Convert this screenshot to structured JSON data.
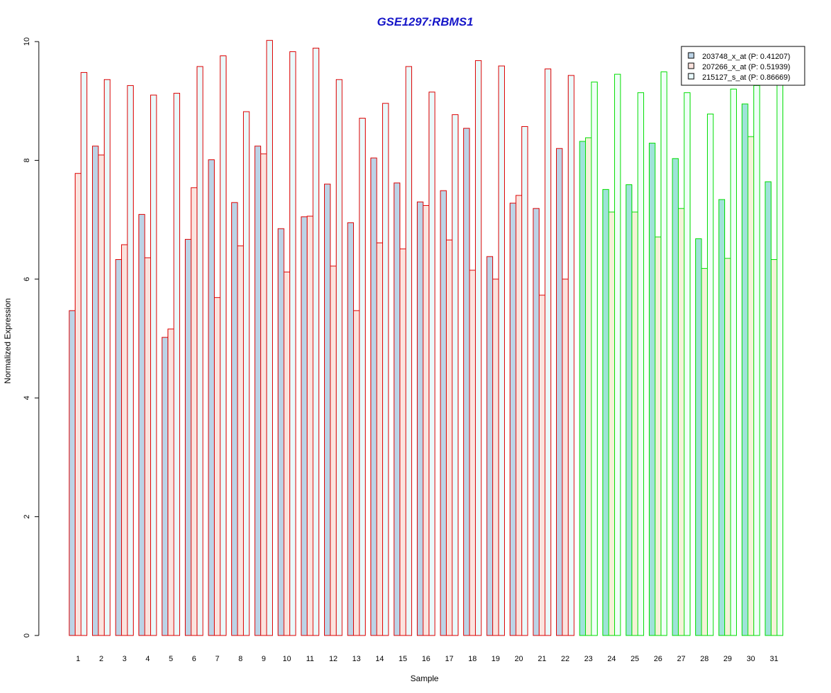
{
  "chart_data": {
    "type": "bar",
    "title": "GSE1297:RBMS1",
    "xlabel": "Sample",
    "ylabel": "Normalized Expression",
    "ylim": [
      0,
      10
    ],
    "yticks": [
      "0",
      "2",
      "4",
      "6",
      "8",
      "10"
    ],
    "categories": [
      "1",
      "2",
      "3",
      "4",
      "5",
      "6",
      "7",
      "8",
      "9",
      "10",
      "11",
      "12",
      "13",
      "14",
      "15",
      "16",
      "17",
      "18",
      "19",
      "20",
      "21",
      "22",
      "23",
      "24",
      "25",
      "26",
      "27",
      "28",
      "29",
      "30",
      "31"
    ],
    "series": [
      {
        "name": "203748_x_at (P: 0.41207)",
        "fill": "#bcd3e6",
        "values": [
          5.47,
          8.24,
          6.33,
          7.09,
          5.02,
          6.67,
          8.01,
          7.29,
          8.24,
          6.85,
          7.05,
          7.6,
          6.95,
          8.04,
          7.62,
          7.3,
          7.49,
          8.54,
          6.38,
          7.28,
          7.19,
          8.2,
          8.32,
          7.51,
          7.59,
          8.29,
          8.03,
          6.68,
          7.34,
          8.95,
          7.64
        ]
      },
      {
        "name": "207266_x_at (P: 0.51939)",
        "fill": "#fbe3de",
        "values": [
          7.78,
          8.09,
          6.58,
          6.36,
          5.16,
          7.54,
          5.69,
          6.56,
          8.11,
          6.12,
          7.06,
          6.22,
          5.47,
          6.61,
          6.51,
          7.24,
          6.66,
          6.15,
          6.0,
          7.41,
          5.73,
          6.0,
          8.38,
          7.13,
          7.13,
          6.71,
          7.19,
          6.18,
          6.35,
          8.4,
          6.33
        ]
      },
      {
        "name": "215127_s_at (P: 0.86669)",
        "fill": "#e9f9fb",
        "values": [
          9.48,
          9.36,
          9.26,
          9.1,
          9.13,
          9.58,
          9.76,
          8.82,
          10.02,
          9.83,
          9.89,
          9.36,
          8.71,
          8.96,
          9.58,
          9.15,
          8.77,
          9.68,
          9.59,
          8.57,
          9.54,
          9.43,
          9.32,
          9.45,
          9.14,
          9.49,
          9.14,
          8.78,
          9.2,
          9.26,
          9.3
        ]
      }
    ],
    "group_colors": {
      "group1": "#dd0000",
      "group2": "#00dd00"
    },
    "group_assignment": [
      1,
      1,
      1,
      1,
      1,
      1,
      1,
      1,
      1,
      1,
      1,
      1,
      1,
      1,
      1,
      1,
      1,
      1,
      1,
      1,
      1,
      1,
      2,
      2,
      2,
      2,
      2,
      2,
      2,
      2,
      2
    ],
    "group2_fills": [
      "#9fe3d9",
      "#f4f2d8",
      "#f0fff8"
    ],
    "title_color": "#1515c8",
    "legend_position": "top-right",
    "grid": false
  }
}
